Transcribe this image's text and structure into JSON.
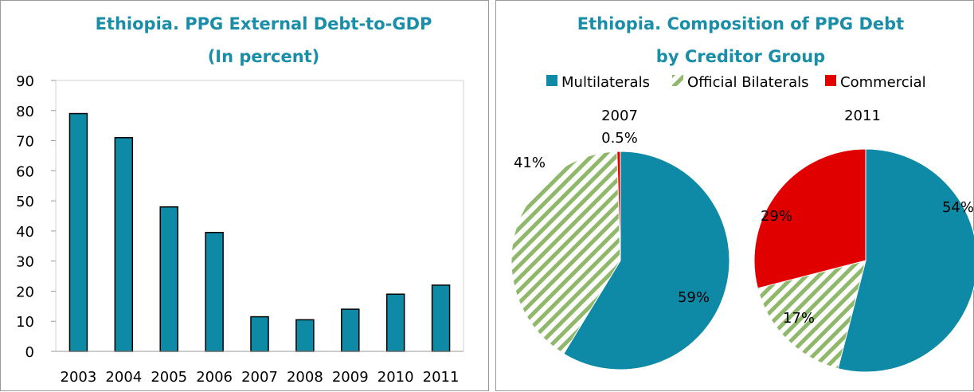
{
  "colors": {
    "title": "#1a8ea8",
    "multilaterals": "#0f8aa6",
    "official_bilaterals_stripe": "#8fb86a",
    "commercial": "#e00000"
  },
  "chart_data": [
    {
      "type": "bar",
      "title": "Ethiopia. PPG External Debt-to-GDP",
      "subtitle": "(In percent)",
      "categories": [
        "2003",
        "2004",
        "2005",
        "2006",
        "2007",
        "2008",
        "2009",
        "2010",
        "2011"
      ],
      "values": [
        79,
        71,
        48,
        39.5,
        11.5,
        10.5,
        14,
        19,
        22
      ],
      "ylim": [
        0,
        90
      ],
      "yticks": [
        "0",
        "10",
        "20",
        "30",
        "40",
        "50",
        "60",
        "70",
        "80",
        "90"
      ],
      "grid": false,
      "xlabel": "",
      "ylabel": ""
    },
    {
      "type": "pie",
      "title": "Ethiopia. Composition of PPG Debt",
      "subtitle": "by Creditor Group",
      "legend": [
        "Multilaterals",
        "Official Bilaterals",
        "Commercial"
      ],
      "legend_position": "top",
      "pies": [
        {
          "label": "2007",
          "slices": [
            {
              "name": "Multilaterals",
              "value": 59,
              "label": "59%"
            },
            {
              "name": "Official Bilaterals",
              "value": 41,
              "label": "41%"
            },
            {
              "name": "Commercial",
              "value": 0.5,
              "label": "0.5%"
            }
          ]
        },
        {
          "label": "2011",
          "slices": [
            {
              "name": "Multilaterals",
              "value": 54,
              "label": "54%"
            },
            {
              "name": "Official Bilaterals",
              "value": 17,
              "label": "17%"
            },
            {
              "name": "Commercial",
              "value": 29,
              "label": "29%"
            }
          ]
        }
      ]
    }
  ]
}
